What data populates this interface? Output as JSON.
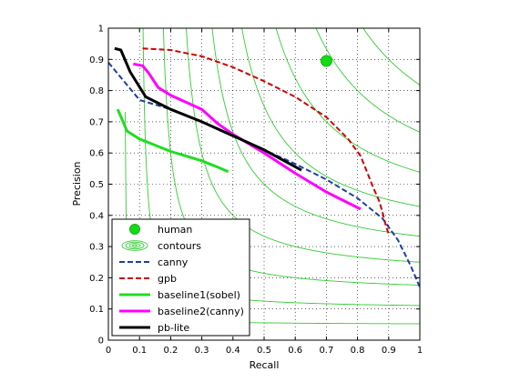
{
  "chart_data": {
    "type": "line",
    "xlabel": "Recall",
    "ylabel": "Precision",
    "xlim": [
      0,
      1
    ],
    "ylim": [
      0,
      1
    ],
    "xticks": [
      0,
      0.1,
      0.2,
      0.3,
      0.4,
      0.5,
      0.6,
      0.7,
      0.8,
      0.9,
      1
    ],
    "yticks": [
      0,
      0.1,
      0.2,
      0.3,
      0.4,
      0.5,
      0.6,
      0.7,
      0.8,
      0.9,
      1
    ],
    "xtick_labels": [
      "0",
      "0.1",
      "0.2",
      "0.3",
      "0.4",
      "0.5",
      "0.6",
      "0.7",
      "0.8",
      "0.9",
      "1"
    ],
    "ytick_labels": [
      "0",
      "0.1",
      "0.2",
      "0.3",
      "0.4",
      "0.5",
      "0.6",
      "0.7",
      "0.8",
      "0.9",
      "1"
    ],
    "grid": true,
    "legend_position": "bottom-left",
    "contour_f_levels": [
      0.1,
      0.2,
      0.3,
      0.4,
      0.5,
      0.6,
      0.7,
      0.8,
      0.9
    ],
    "human_point": {
      "x": 0.7,
      "y": 0.895
    },
    "legend": [
      "human",
      "contours",
      "canny",
      "gpb",
      "baseline1(sobel)",
      "baseline2(canny)",
      "pb-lite"
    ],
    "series": [
      {
        "name": "canny",
        "color": "#1f3fa0",
        "style": "dashed",
        "x": [
          0.0,
          0.05,
          0.1,
          0.2,
          0.3,
          0.4,
          0.5,
          0.6,
          0.7,
          0.8,
          0.88,
          0.93,
          0.97,
          1.0
        ],
        "y": [
          0.89,
          0.83,
          0.77,
          0.74,
          0.7,
          0.655,
          0.61,
          0.565,
          0.515,
          0.455,
          0.39,
          0.32,
          0.24,
          0.17
        ]
      },
      {
        "name": "gpb",
        "color": "#cc0000",
        "style": "dashed",
        "x": [
          0.11,
          0.2,
          0.3,
          0.4,
          0.5,
          0.6,
          0.7,
          0.77,
          0.81,
          0.83,
          0.85,
          0.87,
          0.88,
          0.89,
          0.9
        ],
        "y": [
          0.935,
          0.93,
          0.91,
          0.875,
          0.83,
          0.78,
          0.715,
          0.645,
          0.59,
          0.54,
          0.49,
          0.445,
          0.41,
          0.37,
          0.34
        ]
      },
      {
        "name": "baseline1(sobel)",
        "color": "#22dd22",
        "style": "solid",
        "x": [
          0.03,
          0.06,
          0.1,
          0.15,
          0.2,
          0.25,
          0.3,
          0.35,
          0.385
        ],
        "y": [
          0.74,
          0.67,
          0.645,
          0.625,
          0.605,
          0.59,
          0.575,
          0.555,
          0.54
        ]
      },
      {
        "name": "baseline2(canny)",
        "color": "#ff00ff",
        "style": "solid",
        "x": [
          0.08,
          0.11,
          0.13,
          0.16,
          0.2,
          0.3,
          0.35,
          0.4,
          0.5,
          0.6,
          0.7,
          0.81
        ],
        "y": [
          0.885,
          0.88,
          0.855,
          0.81,
          0.785,
          0.74,
          0.695,
          0.66,
          0.6,
          0.535,
          0.475,
          0.42
        ]
      },
      {
        "name": "pb-lite",
        "color": "#000000",
        "style": "solid",
        "x": [
          0.02,
          0.04,
          0.07,
          0.12,
          0.2,
          0.3,
          0.4,
          0.5,
          0.62
        ],
        "y": [
          0.935,
          0.93,
          0.86,
          0.78,
          0.74,
          0.7,
          0.655,
          0.61,
          0.545
        ]
      }
    ]
  }
}
